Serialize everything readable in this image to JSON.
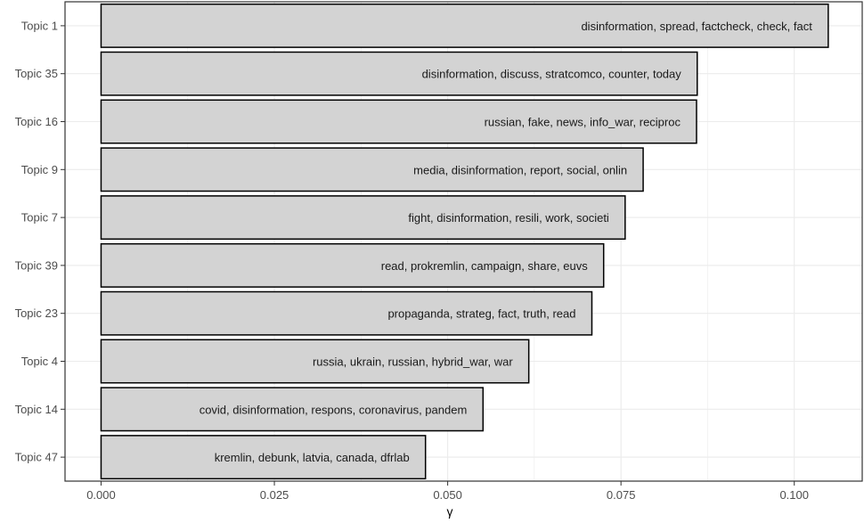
{
  "chart_data": {
    "type": "bar",
    "orientation": "horizontal",
    "xlabel": "γ",
    "ylabel": "",
    "xlim": [
      -0.0052,
      0.1098
    ],
    "grid": true,
    "legend": "none",
    "x_ticks": [
      0.0,
      0.025,
      0.05,
      0.075,
      0.1
    ],
    "x_tick_labels": [
      "0.000",
      "0.025",
      "0.050",
      "0.075",
      "0.100"
    ],
    "categories": [
      "Topic 1",
      "Topic 35",
      "Topic 16",
      "Topic 9",
      "Topic 7",
      "Topic 39",
      "Topic 23",
      "Topic 4",
      "Topic 14",
      "Topic 47"
    ],
    "values": [
      0.1049,
      0.086,
      0.0859,
      0.0782,
      0.0756,
      0.0725,
      0.0708,
      0.0617,
      0.0551,
      0.0468
    ],
    "bar_labels": [
      "disinformation, spread, factcheck, check, fact",
      "disinformation, discuss, stratcomco, counter, today",
      "russian, fake, news, info_war, reciproc",
      "media, disinformation, report, social, onlin",
      "fight, disinformation, resili, work, societi",
      "read, prokremlin, campaign, share, euvs",
      "propaganda, strateg, fact, truth, read",
      "russia, ukrain, russian, hybrid_war, war",
      "covid, disinformation, respons, coronavirus, pandem",
      "kremlin, debunk, latvia, canada, dfrlab"
    ],
    "bar_fill": "#d3d3d3",
    "bar_stroke": "#000000",
    "grid_color": "#ebebeb"
  }
}
